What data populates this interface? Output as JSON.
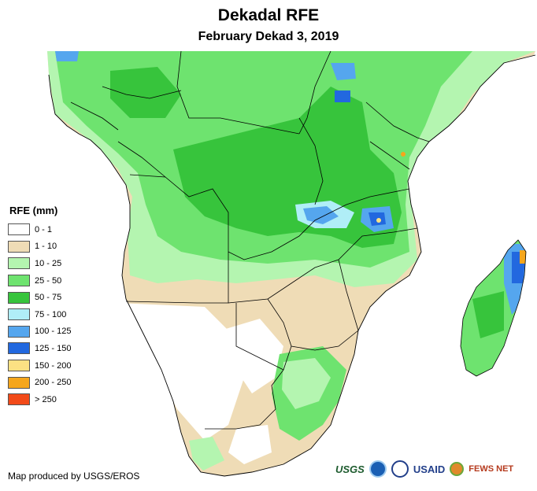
{
  "header": {
    "title": "Dekadal RFE",
    "subtitle": "February Dekad 3, 2019"
  },
  "legend": {
    "title": "RFE (mm)",
    "items": [
      {
        "label": "0 - 1",
        "color": "#ffffff"
      },
      {
        "label": "1 - 10",
        "color": "#efdcb6"
      },
      {
        "label": "10 - 25",
        "color": "#b4f5b0"
      },
      {
        "label": "25 - 50",
        "color": "#6ee36f"
      },
      {
        "label": "50 - 75",
        "color": "#37c43c"
      },
      {
        "label": "75 - 100",
        "color": "#b0eef7"
      },
      {
        "label": "100 - 125",
        "color": "#55a6ee"
      },
      {
        "label": "125 - 150",
        "color": "#2268df"
      },
      {
        "label": "150 - 200",
        "color": "#fce183"
      },
      {
        "label": "200 - 250",
        "color": "#f5a61c"
      },
      {
        "label": "> 250",
        "color": "#f24a19"
      }
    ]
  },
  "footer": {
    "credit": "Map produced by USGS/EROS",
    "logos": {
      "usgs": "USGS",
      "usaid": "USAID",
      "fews": "FEWS NET"
    }
  },
  "colors": {
    "border": "#000000",
    "ocean": "#ffffff"
  }
}
